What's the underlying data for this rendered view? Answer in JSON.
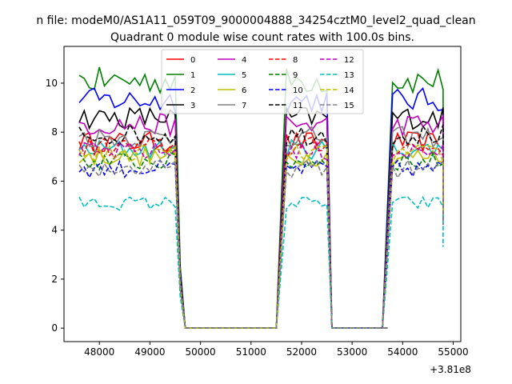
{
  "figure": {
    "suptitle": "n file: modeM0/AS1A11_059T09_9000004888_34254cztM0_level2_quad_clean",
    "title": "Quadrant 0 module wise count rates with 100.0s bins.",
    "x_offset_label": "+3.81e8"
  },
  "chart_data": {
    "type": "line",
    "title": "Quadrant 0 module wise count rates with 100.0s bins.",
    "xlabel": "",
    "ylabel": "",
    "x_offset": 381000000,
    "xlim": [
      47300,
      55150
    ],
    "ylim": [
      -0.55,
      11.5
    ],
    "xticks": [
      48000,
      49000,
      50000,
      51000,
      52000,
      53000,
      54000,
      55000
    ],
    "yticks": [
      0,
      2,
      4,
      6,
      8,
      10
    ],
    "grid": false,
    "legend": {
      "placement": "top-center",
      "columns": 4
    },
    "segments": [
      {
        "x_start": 47600,
        "x_end": 49500,
        "points": 20
      },
      {
        "x_start": 51700,
        "x_end": 52500,
        "points": 9
      },
      {
        "x_start": 53800,
        "x_end": 54800,
        "points": 11
      }
    ],
    "zero_range": [
      49700,
      51500
    ],
    "series": [
      {
        "name": "0",
        "color": "#ff0000",
        "dash": "solid",
        "level": 7.6
      },
      {
        "name": "1",
        "color": "#008000",
        "dash": "solid",
        "level": 10.1
      },
      {
        "name": "2",
        "color": "#0000ff",
        "dash": "solid",
        "level": 9.3
      },
      {
        "name": "3",
        "color": "#000000",
        "dash": "solid",
        "level": 8.6
      },
      {
        "name": "4",
        "color": "#bf00bf",
        "dash": "solid",
        "level": 8.3
      },
      {
        "name": "5",
        "color": "#00bfbf",
        "dash": "solid",
        "level": 7.3
      },
      {
        "name": "6",
        "color": "#bfbf00",
        "dash": "solid",
        "level": 7.0
      },
      {
        "name": "7",
        "color": "#808080",
        "dash": "solid",
        "level": 7.8
      },
      {
        "name": "8",
        "color": "#ff0000",
        "dash": "dashed",
        "level": 7.4
      },
      {
        "name": "9",
        "color": "#008000",
        "dash": "dashed",
        "level": 6.8
      },
      {
        "name": "10",
        "color": "#0000ff",
        "dash": "dashed",
        "level": 6.5
      },
      {
        "name": "11",
        "color": "#000000",
        "dash": "dashed",
        "level": 7.9
      },
      {
        "name": "12",
        "color": "#bf00bf",
        "dash": "dashed",
        "level": 7.2
      },
      {
        "name": "13",
        "color": "#00bfbf",
        "dash": "dashed",
        "level": 5.1
      },
      {
        "name": "14",
        "color": "#bfbf00",
        "dash": "dashed",
        "level": 7.1
      },
      {
        "name": "15",
        "color": "#808080",
        "dash": "dashed",
        "level": 6.5
      }
    ]
  }
}
